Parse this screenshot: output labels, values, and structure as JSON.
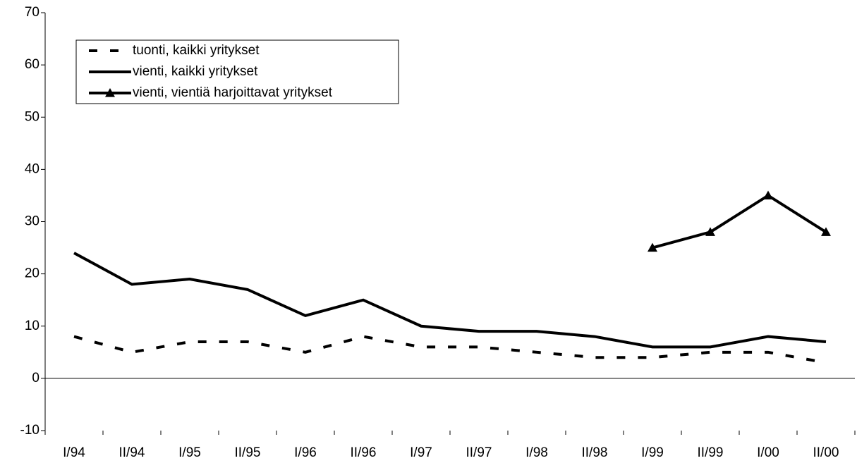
{
  "chart_data": {
    "type": "line",
    "categories": [
      "I/94",
      "II/94",
      "I/95",
      "II/95",
      "I/96",
      "II/96",
      "I/97",
      "II/97",
      "I/98",
      "II/98",
      "I/99",
      "II/99",
      "I/00",
      "II/00"
    ],
    "series": [
      {
        "name": "tuonti, kaikki yritykset",
        "color": "#000000",
        "dash": true,
        "values": [
          8,
          5,
          7,
          7,
          5,
          8,
          6,
          6,
          5,
          4,
          4,
          5,
          5,
          3
        ]
      },
      {
        "name": "vienti, kaikki yritykset",
        "color": "#000000",
        "values": [
          24,
          18,
          19,
          17,
          12,
          15,
          10,
          9,
          9,
          8,
          6,
          6,
          8,
          7
        ]
      },
      {
        "name": "vienti, vientiä harjoittavat yritykset",
        "color": "#000000",
        "marker": "triangle",
        "values": [
          null,
          null,
          null,
          null,
          null,
          null,
          null,
          null,
          null,
          null,
          25,
          28,
          35,
          28
        ]
      }
    ],
    "ylim": [
      -10,
      70
    ],
    "yticks": [
      -10,
      0,
      10,
      20,
      30,
      40,
      50,
      60,
      70
    ],
    "legend": "top-left"
  }
}
